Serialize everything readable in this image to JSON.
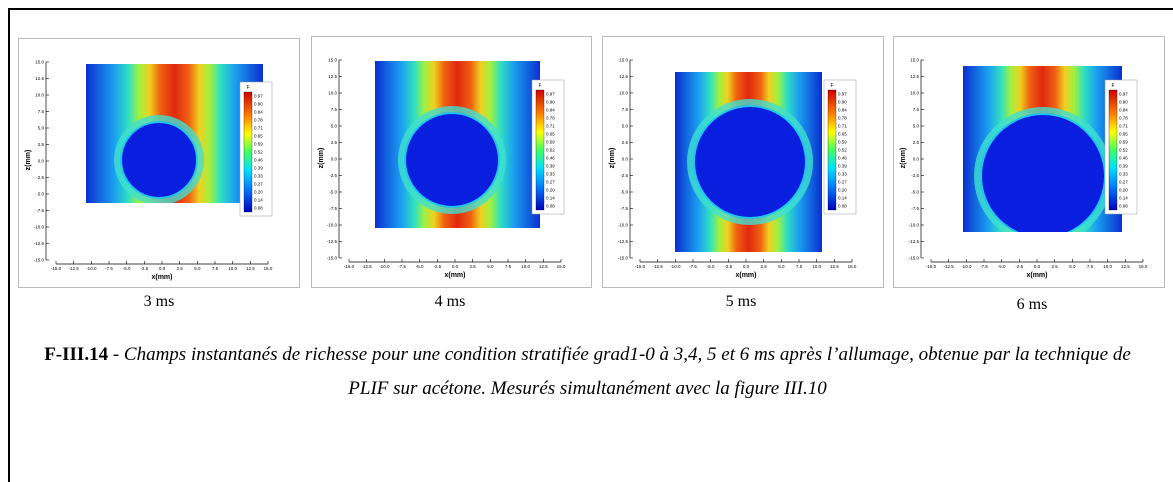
{
  "panels": [
    {
      "label": "3 ms"
    },
    {
      "label": "4 ms"
    },
    {
      "label": "5 ms"
    },
    {
      "label": "6 ms"
    }
  ],
  "plot": {
    "x_label": "x(mm)",
    "y_label": "z(mm)",
    "colorbar_title": "F",
    "colorbar_labels": [
      "0.97",
      "0.90",
      "0.84",
      "0.78",
      "0.71",
      "0.65",
      "0.59",
      "0.52",
      "0.46",
      "0.39",
      "0.33",
      "0.27",
      "0.20",
      "0.14",
      "0.08"
    ],
    "x_ticks": [
      "-15.0",
      "-12.5",
      "-10.0",
      "-7.5",
      "-5.0",
      "-2.5",
      "0.0",
      "2.5",
      "5.0",
      "7.5",
      "10.0",
      "12.5",
      "15.0"
    ],
    "y_ticks": [
      "15.0",
      "12.5",
      "10.0",
      "7.5",
      "5.0",
      "2.5",
      "0.0",
      "-2.5",
      "-5.0",
      "-7.5",
      "-10.0",
      "-12.5",
      "-15.0"
    ]
  },
  "caption": {
    "label": "F-III.14",
    "separator": "-",
    "text": "Champs instantanés de richesse pour une condition stratifiée grad1-0 à 3,4, 5 et 6 ms après l’allumage, obtenue par la technique de PLIF sur acétone. Mesurés simultanément avec la figure III.10"
  }
}
